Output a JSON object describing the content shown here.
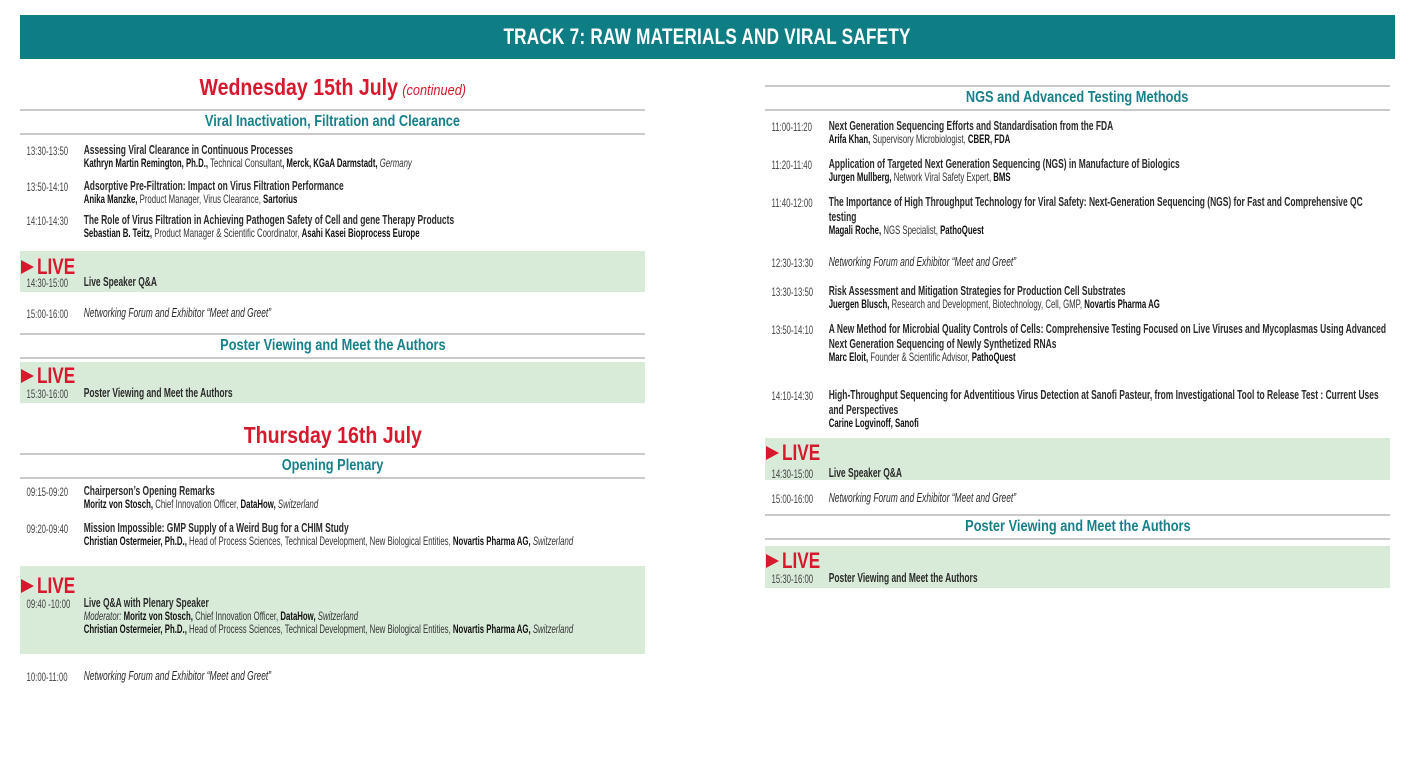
{
  "header": {
    "title": "TRACK 7: RAW MATERIALS AND VIRAL SAFETY"
  },
  "colors": {
    "header_bg": "#0f7e84",
    "day_title": "#d7192d",
    "section_heading": "#17808a",
    "live_bg": "#d8ebd9",
    "live_badge": "#d7192d"
  },
  "left": {
    "day1": {
      "title": "Wednesday 15th July",
      "note": "(continued)"
    },
    "s1": {
      "heading": "Viral Inactivation, Filtration and Clearance",
      "items": [
        {
          "time": "13:30-13:50",
          "title": "Assessing Viral Clearance in Continuous Processes",
          "speaker": [
            [
              "Kathryn Martin Remington, Ph.D.,",
              "b"
            ],
            [
              " Technical Consultant",
              "r"
            ],
            [
              ", Merck, KGaA Darmstadt,",
              "b"
            ],
            [
              " Germany",
              "i"
            ]
          ]
        },
        {
          "time": "13:50-14:10",
          "title": "Adsorptive Pre-Filtration: Impact on Virus Filtration Performance",
          "speaker": [
            [
              "Anika Manzke,",
              "b"
            ],
            [
              " Product Manager, Virus Clearance, ",
              "r"
            ],
            [
              "Sartorius",
              "b"
            ]
          ]
        },
        {
          "time": "14:10-14:30",
          "title": "The Role of Virus Filtration in Achieving Pathogen Safety of Cell and gene Therapy Products",
          "speaker": [
            [
              "Sebastian B. Teitz,",
              "b"
            ],
            [
              " Product Manager & Scientific Coordinator, ",
              "r"
            ],
            [
              "Asahi Kasei Bioprocess Europe",
              "b"
            ]
          ]
        }
      ]
    },
    "live1": {
      "badge": "LIVE",
      "time": "14:30-15:00",
      "title": "Live Speaker Q&A"
    },
    "net1": {
      "time": "15:00-16:00",
      "title": "Networking Forum and Exhibitor “Meet and Greet”"
    },
    "s2": {
      "heading": "Poster Viewing and Meet the Authors"
    },
    "live2": {
      "badge": "LIVE",
      "time": "15:30-16:00",
      "title": "Poster Viewing and Meet the Authors"
    },
    "day2": {
      "title": "Thursday 16th July"
    },
    "s3": {
      "heading": "Opening Plenary",
      "items": [
        {
          "time": "09:15-09:20",
          "title": "Chairperson’s Opening Remarks",
          "speaker": [
            [
              "Moritz von Stosch,",
              "b"
            ],
            [
              " Chief Innovation Officer, ",
              "r"
            ],
            [
              "DataHow,",
              "b"
            ],
            [
              " Switzerland",
              "i"
            ]
          ]
        },
        {
          "time": "09:20-09:40",
          "title": "Mission Impossible: GMP Supply of a Weird Bug for a CHIM Study",
          "speaker": [
            [
              "Christian Ostermeier, Ph.D.,",
              "b"
            ],
            [
              " Head of Process Sciences, Technical Development, New Biological Entities, ",
              "r"
            ],
            [
              "Novartis Pharma AG,",
              "b"
            ],
            [
              " Switzerland",
              "i"
            ]
          ]
        }
      ]
    },
    "live3": {
      "badge": "LIVE",
      "time": "09:40 -10:00",
      "title": "Live Q&A with Plenary Speaker",
      "speakers": [
        [
          [
            "Moderator:",
            "i"
          ],
          [
            " Moritz von Stosch,",
            "b"
          ],
          [
            " Chief Innovation Officer, ",
            "r"
          ],
          [
            "DataHow,",
            "b"
          ],
          [
            " Switzerland",
            "i"
          ]
        ],
        [
          [
            "Christian Ostermeier, Ph.D.,",
            "b"
          ],
          [
            " Head of Process Sciences, Technical Development, New Biological Entities, ",
            "r"
          ],
          [
            "Novartis Pharma AG,",
            "b"
          ],
          [
            " Switzerland",
            "i"
          ]
        ]
      ]
    },
    "net2": {
      "time": "10:00-11:00",
      "title": "Networking Forum and Exhibitor “Meet and Greet”"
    }
  },
  "right": {
    "s1": {
      "heading": "NGS and Advanced Testing Methods",
      "items": [
        {
          "time": "11:00-11:20",
          "title": "Next Generation Sequencing Efforts and Standardisation from the FDA",
          "speaker": [
            [
              "Arifa Khan,",
              "b"
            ],
            [
              " Supervisory Microbiologist, ",
              "r"
            ],
            [
              "CBER, FDA",
              "b"
            ]
          ]
        },
        {
          "time": "11:20-11:40",
          "title": "Application of Targeted Next Generation Sequencing (NGS) in Manufacture of Biologics",
          "speaker": [
            [
              "Jurgen Mullberg,",
              "b"
            ],
            [
              " Network Viral Safety Expert, ",
              "r"
            ],
            [
              "BMS",
              "b"
            ]
          ]
        },
        {
          "time": "11:40-12:00",
          "title": "The Importance of High Throughput Technology for Viral Safety: Next-Generation Sequencing (NGS) for Fast and Comprehensive QC testing",
          "speaker": [
            [
              "Magali Roche,",
              "b"
            ],
            [
              " NGS Specialist, ",
              "r"
            ],
            [
              "PathoQuest",
              "b"
            ]
          ]
        }
      ]
    },
    "net1": {
      "time": "12:30-13:30",
      "title": "Networking Forum and Exhibitor “Meet and Greet”"
    },
    "items2": [
      {
        "time": "13:30-13:50",
        "title": "Risk Assessment and Mitigation Strategies for Production Cell Substrates",
        "speaker": [
          [
            "Juergen Blusch,",
            "b"
          ],
          [
            " Research and Development, Biotechnology, Cell, GMP, ",
            "r"
          ],
          [
            "Novartis Pharma AG",
            "b"
          ]
        ]
      },
      {
        "time": "13:50-14:10",
        "title": "A New Method for Microbial Quality Controls of Cells: Comprehensive Testing Focused on Live Viruses and Mycoplasmas Using Advanced Next Generation Sequencing of Newly Synthetized RNAs",
        "speaker": [
          [
            "Marc Eloit,",
            "b"
          ],
          [
            " Founder & Scientific Advisor, ",
            "r"
          ],
          [
            "PathoQuest",
            "b"
          ]
        ]
      },
      {
        "time": "14:10-14:30",
        "title": "High-Throughput Sequencing for Adventitious Virus Detection at Sanofi Pasteur, from Investigational Tool to Release Test : Current Uses and Perspectives",
        "speaker": [
          [
            "Carine Logvinoff, Sanofi",
            "b"
          ]
        ]
      }
    ],
    "live1": {
      "badge": "LIVE",
      "time": "14:30-15:00",
      "title": "Live Speaker Q&A"
    },
    "net2": {
      "time": "15:00-16:00",
      "title": "Networking Forum and Exhibitor “Meet and Greet”"
    },
    "s2": {
      "heading": "Poster Viewing and Meet the Authors"
    },
    "live2": {
      "badge": "LIVE",
      "time": "15:30-16:00",
      "title": "Poster Viewing and Meet the Authors"
    }
  }
}
